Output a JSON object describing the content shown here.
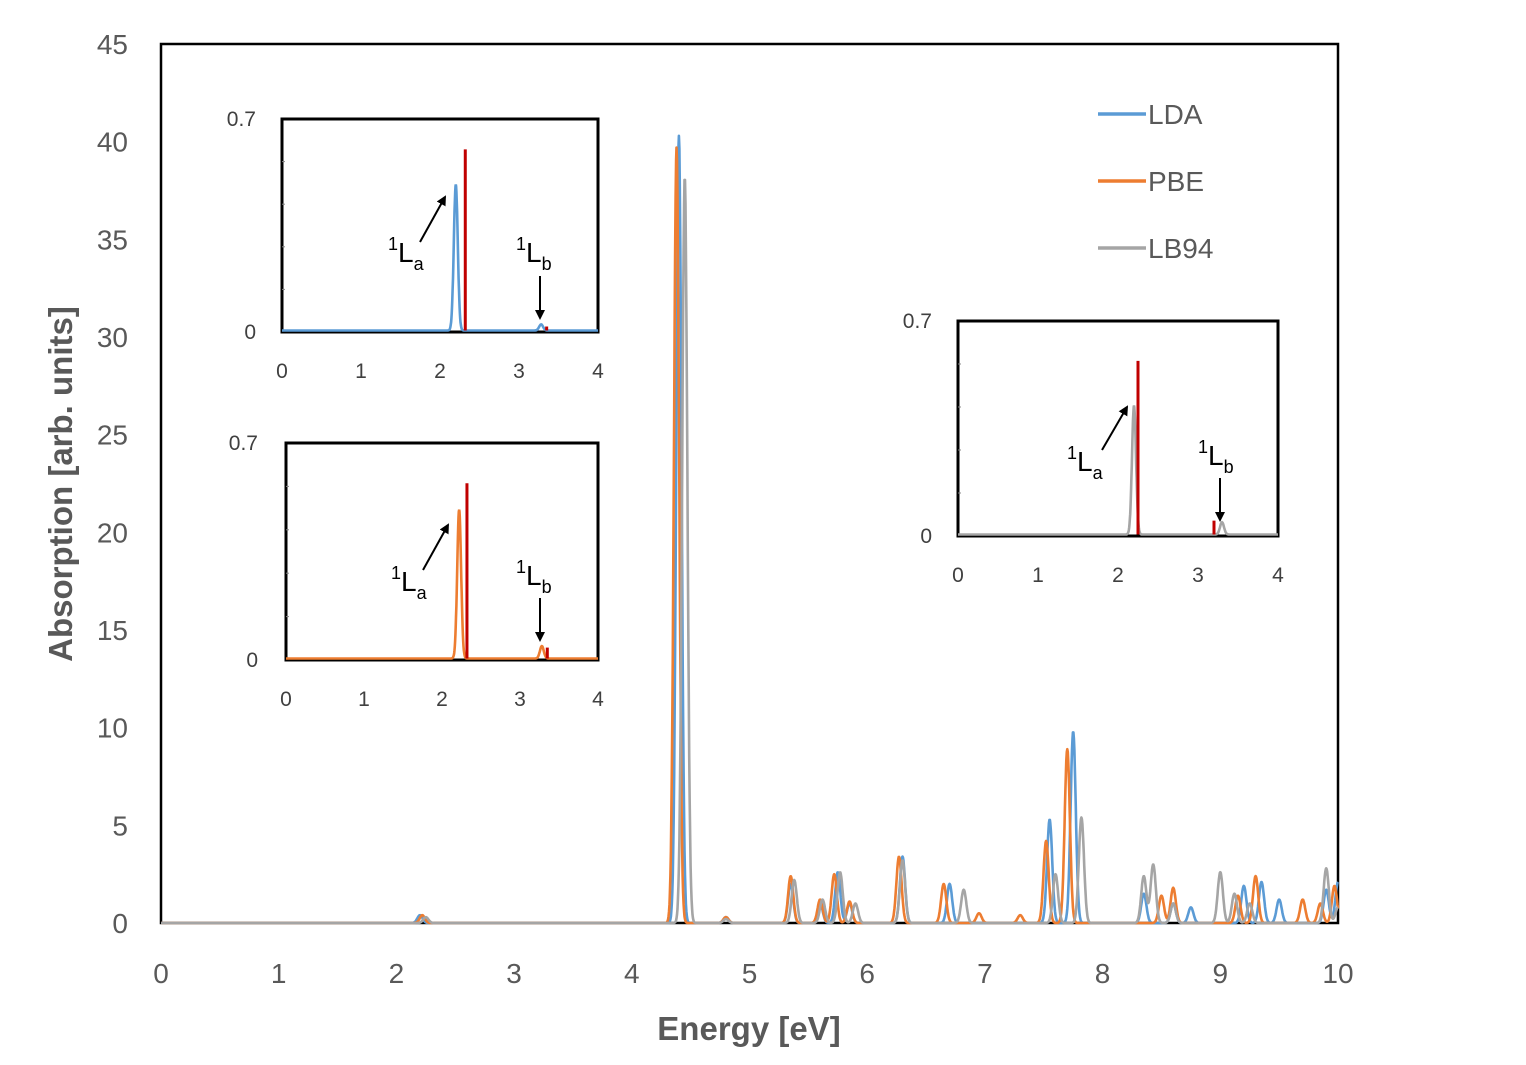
{
  "chart_data": {
    "type": "line",
    "title": "",
    "xlabel": "Energy [eV]",
    "ylabel": "Absorption [arb. units]",
    "xlim": [
      0,
      10
    ],
    "ylim": [
      0,
      45
    ],
    "xticks": [
      "0",
      "1",
      "2",
      "3",
      "4",
      "5",
      "6",
      "7",
      "8",
      "9",
      "10"
    ],
    "yticks": [
      "0",
      "5",
      "10",
      "15",
      "20",
      "25",
      "30",
      "35",
      "40",
      "45"
    ],
    "legend_position": "top-right",
    "colors": {
      "LDA": "#5b9bd5",
      "PBE": "#ed7d31",
      "LB94": "#a5a5a5",
      "ref": "#c00000"
    },
    "series": [
      {
        "name": "LDA",
        "peaks": [
          [
            2.2,
            0.4
          ],
          [
            4.4,
            40.3
          ],
          [
            4.8,
            0.3
          ],
          [
            5.35,
            2.0
          ],
          [
            5.6,
            1.0
          ],
          [
            5.75,
            2.6
          ],
          [
            5.85,
            1.0
          ],
          [
            6.3,
            3.4
          ],
          [
            6.7,
            2.0
          ],
          [
            7.55,
            5.3
          ],
          [
            7.75,
            9.8
          ],
          [
            8.35,
            1.5
          ],
          [
            8.6,
            1.0
          ],
          [
            8.75,
            0.8
          ],
          [
            9.2,
            1.9
          ],
          [
            9.35,
            2.1
          ],
          [
            9.5,
            1.2
          ],
          [
            9.9,
            1.7
          ],
          [
            10.0,
            2.1
          ]
        ]
      },
      {
        "name": "PBE",
        "peaks": [
          [
            2.22,
            0.4
          ],
          [
            4.38,
            39.7
          ],
          [
            4.8,
            0.3
          ],
          [
            5.35,
            2.4
          ],
          [
            5.6,
            1.2
          ],
          [
            5.72,
            2.5
          ],
          [
            5.85,
            1.1
          ],
          [
            6.27,
            3.4
          ],
          [
            6.65,
            2.0
          ],
          [
            6.95,
            0.5
          ],
          [
            7.3,
            0.4
          ],
          [
            7.52,
            4.2
          ],
          [
            7.7,
            8.9
          ],
          [
            8.5,
            1.4
          ],
          [
            8.6,
            1.8
          ],
          [
            9.15,
            1.4
          ],
          [
            9.3,
            2.4
          ],
          [
            9.7,
            1.2
          ],
          [
            9.85,
            1.0
          ],
          [
            9.97,
            1.9
          ]
        ]
      },
      {
        "name": "LB94",
        "peaks": [
          [
            2.25,
            0.3
          ],
          [
            4.45,
            38.2
          ],
          [
            4.8,
            0.2
          ],
          [
            5.38,
            2.2
          ],
          [
            5.62,
            1.2
          ],
          [
            5.77,
            2.6
          ],
          [
            5.9,
            1.0
          ],
          [
            6.3,
            3.2
          ],
          [
            6.82,
            1.7
          ],
          [
            7.6,
            2.5
          ],
          [
            7.82,
            5.4
          ],
          [
            8.35,
            2.4
          ],
          [
            8.43,
            3.0
          ],
          [
            8.6,
            1.0
          ],
          [
            9.0,
            2.6
          ],
          [
            9.12,
            1.5
          ],
          [
            9.25,
            1.0
          ],
          [
            9.9,
            2.8
          ],
          [
            10.0,
            0.8
          ]
        ]
      }
    ],
    "insets": [
      {
        "series": "LDA",
        "xlim": [
          0,
          4
        ],
        "ylim": [
          0,
          0.7
        ],
        "xticks": [
          "0",
          "1",
          "2",
          "3",
          "4"
        ],
        "ytick_labels": [
          "0",
          "0.7"
        ],
        "peaks": [
          [
            2.2,
            0.48
          ],
          [
            3.28,
            0.02
          ]
        ],
        "ref_sticks": [
          [
            2.32,
            0.6
          ],
          [
            3.35,
            0.018
          ]
        ]
      },
      {
        "series": "PBE",
        "xlim": [
          0,
          4
        ],
        "ylim": [
          0,
          0.7
        ],
        "xticks": [
          "0",
          "1",
          "2",
          "3",
          "4"
        ],
        "ytick_labels": [
          "0",
          "0.7"
        ],
        "peaks": [
          [
            2.22,
            0.48
          ],
          [
            3.28,
            0.04
          ]
        ],
        "ref_sticks": [
          [
            2.32,
            0.57
          ],
          [
            3.35,
            0.04
          ]
        ]
      },
      {
        "series": "LB94",
        "xlim": [
          0,
          4
        ],
        "ylim": [
          0,
          0.7
        ],
        "xticks": [
          "0",
          "1",
          "2",
          "3",
          "4"
        ],
        "ytick_labels": [
          "0",
          "0.7"
        ],
        "peaks": [
          [
            2.2,
            0.42
          ],
          [
            3.3,
            0.04
          ]
        ],
        "ref_sticks": [
          [
            2.25,
            0.57
          ],
          [
            3.2,
            0.05
          ]
        ]
      }
    ],
    "annotations": {
      "La": {
        "sup": "1",
        "base": "L",
        "sub": "a"
      },
      "Lb": {
        "sup": "1",
        "base": "L",
        "sub": "b"
      }
    }
  }
}
